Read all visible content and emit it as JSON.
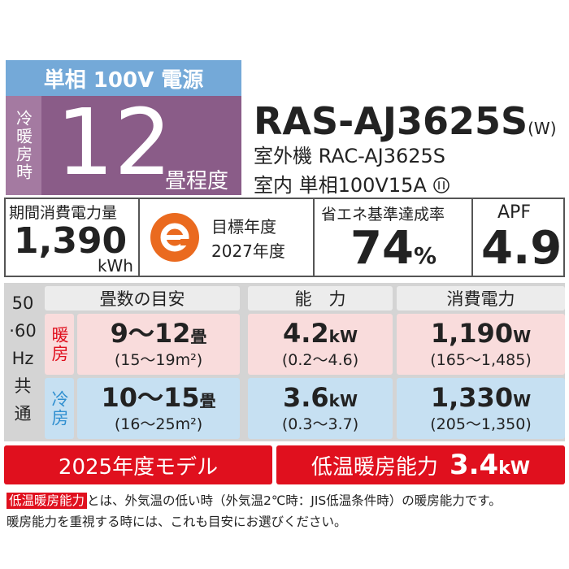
{
  "header": {
    "power": "単相 100V 電源",
    "mode_label": "冷暖房時",
    "tatami": "12",
    "tatami_unit": "畳程度"
  },
  "model": {
    "name": "RAS-AJ3625S",
    "color_code": "(W)",
    "outdoor": "室外機 RAC-AJ3625S",
    "indoor": "室内 単相100V15A"
  },
  "energy": {
    "annual_label": "期間消費電力量",
    "annual_value": "1,390",
    "annual_unit": "kWh",
    "target_label": "目標年度",
    "target_year": "2027年度",
    "rate_label": "省エネ基準達成率",
    "rate_value": "74",
    "rate_unit": "%",
    "apf_label": "APF",
    "apf_value": "4.9"
  },
  "table": {
    "side": [
      "50",
      "·60",
      "Hz",
      "共",
      "通"
    ],
    "headers": [
      "畳数の目安",
      "能　力",
      "消費電力"
    ],
    "rows": [
      {
        "label": "暖房",
        "cells": [
          {
            "main": "9～12",
            "unit": "畳",
            "range": "(15～19m²)"
          },
          {
            "main": "4.2",
            "unit": "kW",
            "range": "(0.2～4.6)"
          },
          {
            "main": "1,190",
            "unit": "W",
            "range": "(165～1,485)"
          }
        ]
      },
      {
        "label": "冷房",
        "cells": [
          {
            "main": "10～15",
            "unit": "畳",
            "range": "(16～25m²)"
          },
          {
            "main": "3.6",
            "unit": "kW",
            "range": "(0.3～3.7)"
          },
          {
            "main": "1,330",
            "unit": "W",
            "range": "(205～1,350)"
          }
        ]
      }
    ]
  },
  "footer": {
    "model_year": "2025年度モデル",
    "low_temp_label": "低温暖房能力",
    "low_temp_value": "3.4",
    "low_temp_unit": "kW"
  },
  "note": {
    "tag": "低温暖房能力",
    "line1": "とは、外気温の低い時（外気温2℃時：JIS低温条件時）の暖房能力です。",
    "line2": "暖房能力を重視する時には、これも目安にお選びください。"
  }
}
